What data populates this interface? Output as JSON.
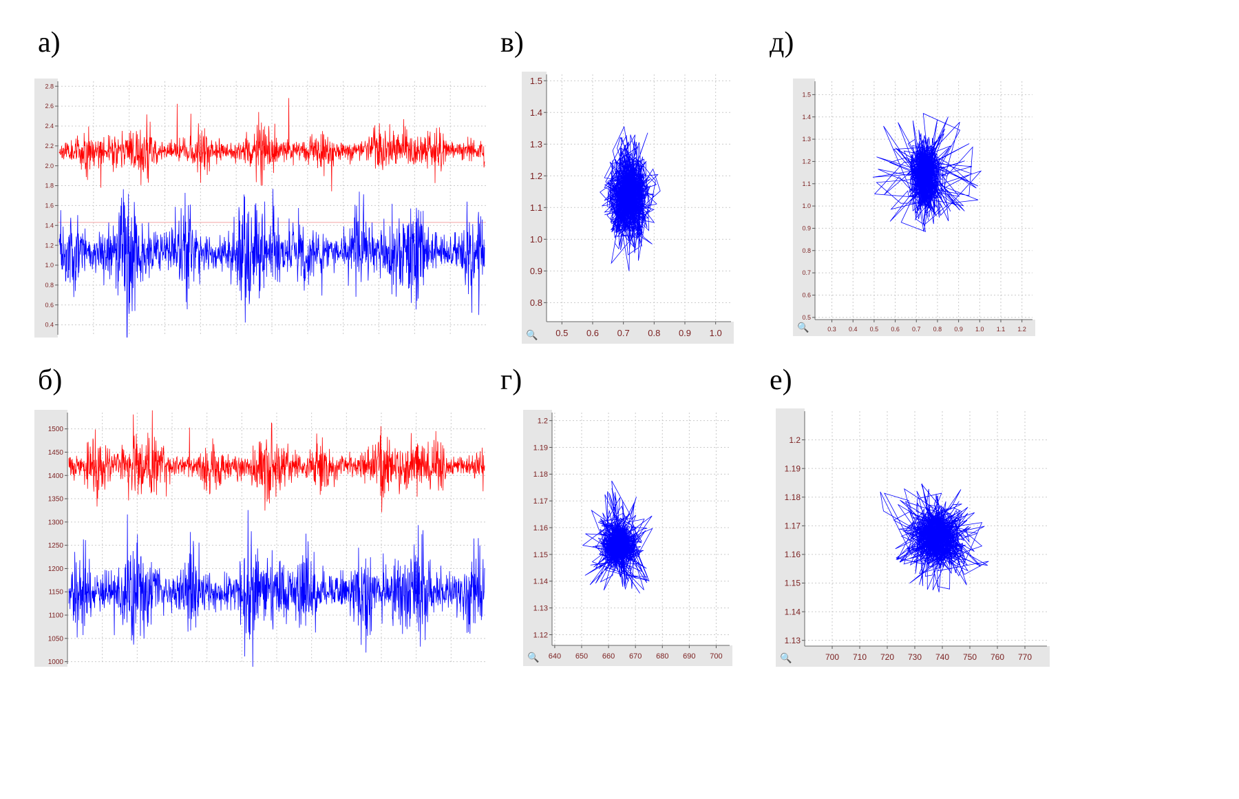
{
  "labels": {
    "a": "а)",
    "b": "б)",
    "v": "в)",
    "g": "г)",
    "d": "д)",
    "e": "е)"
  },
  "icons": {
    "zoom": "🔍",
    "plot_menu": "magnifier-icon"
  },
  "colors": {
    "red_series": "#ff0000",
    "blue_series": "#0000ff",
    "grid": "#c9c9c9",
    "axis_strip": "#e6e6e6",
    "tick_text": "#7a1f1f"
  },
  "chart_data": [
    {
      "id": "a",
      "type": "line",
      "y_ticks": [
        "2.8",
        "2.6",
        "2.4",
        "2.2",
        "2.0",
        "1.8",
        "1.6",
        "1.4",
        "1.2",
        "1.0",
        "0.8",
        "0.6",
        "0.4"
      ],
      "ylim": [
        0.3,
        2.85
      ],
      "grid": true,
      "series": [
        {
          "color": "red",
          "baseline": 2.15,
          "noise": 0.045,
          "spike_scale": 0.45
        },
        {
          "color": "blue",
          "baseline": 1.13,
          "noise": 0.09,
          "spike_scale": 0.4
        }
      ],
      "reference_line": 1.43
    },
    {
      "id": "b",
      "type": "line",
      "y_ticks": [
        "1500",
        "1450",
        "1400",
        "1350",
        "1300",
        "1250",
        "1200",
        "1150",
        "1100",
        "1050",
        "1000"
      ],
      "ylim": [
        995,
        1535
      ],
      "grid": true,
      "series": [
        {
          "color": "red",
          "baseline": 1420,
          "noise": 12,
          "spike_scale": 80
        },
        {
          "color": "blue",
          "baseline": 1150,
          "noise": 18,
          "spike_scale": 95
        }
      ]
    },
    {
      "id": "v",
      "type": "scatter",
      "x_ticks": [
        "0.5",
        "0.6",
        "0.7",
        "0.8",
        "0.9",
        "1.0"
      ],
      "y_ticks": [
        "1.5",
        "1.4",
        "1.3",
        "1.2",
        "1.1",
        "1.0",
        "0.9",
        "0.8"
      ],
      "xlim": [
        0.45,
        1.05
      ],
      "ylim": [
        0.74,
        1.52
      ],
      "grid": true,
      "center": [
        0.72,
        1.14
      ],
      "spread": [
        0.045,
        0.09
      ],
      "outer": [
        0.105,
        0.3
      ]
    },
    {
      "id": "d",
      "type": "scatter",
      "x_ticks": [
        "0.3",
        "0.4",
        "0.5",
        "0.6",
        "0.7",
        "0.8",
        "0.9",
        "1.0",
        "1.1",
        "1.2"
      ],
      "y_ticks": [
        "1.5",
        "1.4",
        "1.3",
        "1.2",
        "1.1",
        "1.0",
        "0.9",
        "0.8",
        "0.7",
        "0.6",
        "0.5"
      ],
      "xlim": [
        0.22,
        1.25
      ],
      "ylim": [
        0.49,
        1.56
      ],
      "grid": true,
      "center": [
        0.74,
        1.13
      ],
      "spread": [
        0.045,
        0.1
      ],
      "outer": [
        0.42,
        0.45
      ]
    },
    {
      "id": "g",
      "type": "scatter",
      "x_ticks": [
        "640",
        "650",
        "660",
        "670",
        "680",
        "690",
        "700"
      ],
      "y_ticks": [
        "1.2",
        "1.19",
        "1.18",
        "1.17",
        "1.16",
        "1.15",
        "1.14",
        "1.13",
        "1.12"
      ],
      "xlim": [
        639,
        705
      ],
      "ylim": [
        1.116,
        1.203
      ],
      "grid": true,
      "center": [
        664,
        1.153
      ],
      "spread": [
        4.5,
        0.006
      ],
      "outer": [
        20,
        0.035
      ]
    },
    {
      "id": "e",
      "type": "scatter",
      "x_ticks": [
        "700",
        "710",
        "720",
        "730",
        "740",
        "750",
        "760",
        "770"
      ],
      "y_ticks": [
        "1.2",
        "1.19",
        "1.18",
        "1.17",
        "1.16",
        "1.15",
        "1.14",
        "1.13"
      ],
      "xlim": [
        690,
        778
      ],
      "ylim": [
        1.128,
        1.21
      ],
      "grid": true,
      "center": [
        738,
        1.166
      ],
      "spread": [
        6,
        0.007
      ],
      "outer": [
        30,
        0.03
      ]
    }
  ]
}
